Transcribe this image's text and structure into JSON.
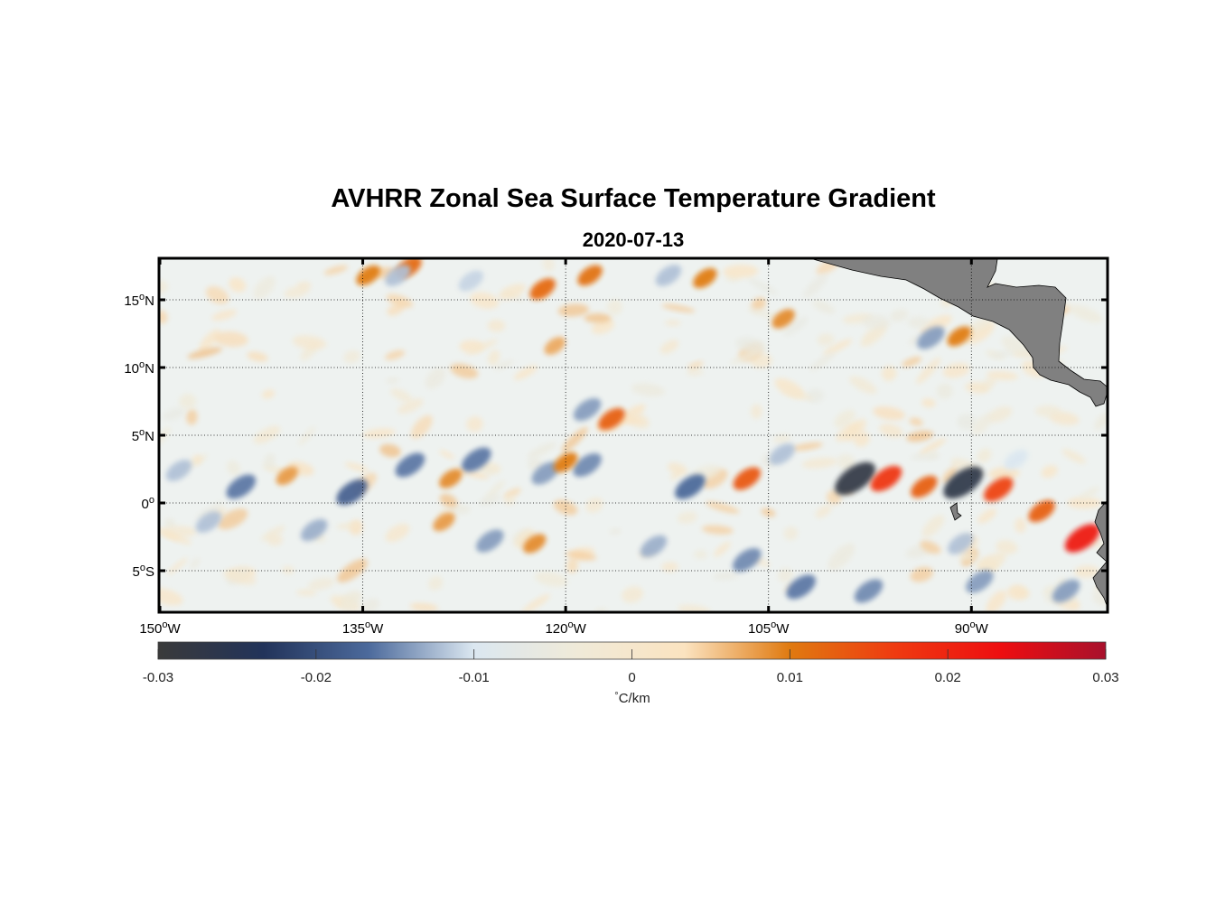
{
  "title": "AVHRR Zonal Sea Surface Temperature Gradient",
  "subtitle": "2020-07-13",
  "map": {
    "lon_range": [
      -150,
      -80
    ],
    "lat_range": [
      -8,
      18
    ],
    "grid": true,
    "lat_ticks": [
      {
        "value": 15,
        "deg": "15",
        "hemi": "N"
      },
      {
        "value": 10,
        "deg": "10",
        "hemi": "N"
      },
      {
        "value": 5,
        "deg": "5",
        "hemi": "N"
      },
      {
        "value": 0,
        "deg": "0",
        "hemi": ""
      },
      {
        "value": -5,
        "deg": "5",
        "hemi": "S"
      }
    ],
    "lon_ticks": [
      {
        "value": -150,
        "deg": "150",
        "hemi": "W"
      },
      {
        "value": -135,
        "deg": "135",
        "hemi": "W"
      },
      {
        "value": -120,
        "deg": "120",
        "hemi": "W"
      },
      {
        "value": -105,
        "deg": "105",
        "hemi": "W"
      },
      {
        "value": -90,
        "deg": "90",
        "hemi": "W"
      }
    ],
    "land_color": "#808080"
  },
  "colorbar": {
    "ticks": [
      "-0.03",
      "-0.02",
      "-0.01",
      "0",
      "0.01",
      "0.02",
      "0.03"
    ],
    "tick_values": [
      -0.03,
      -0.02,
      -0.01,
      0,
      0.01,
      0.02,
      0.03
    ],
    "unit_symbol": "°",
    "unit": "C/km",
    "colors": [
      "#3a3a3a",
      "#22335a",
      "#4c6a9c",
      "#dbe7f0",
      "#f0ead8",
      "#fbe3c0",
      "#e07a10",
      "#ef3a10",
      "#ee0e10",
      "#a8102c"
    ]
  },
  "chart_data": {
    "type": "heatmap",
    "title": "AVHRR Zonal Sea Surface Temperature Gradient",
    "subtitle": "2020-07-13",
    "colorbar_label": "°C/km",
    "colorbar_range": [
      -0.03,
      0.03
    ],
    "x_range": [
      -150,
      -80
    ],
    "y_range": [
      -8,
      18
    ],
    "features": [
      {
        "lon": -98.6,
        "lat": 1.8,
        "value": -0.028
      },
      {
        "lon": -96.3,
        "lat": 1.8,
        "value": 0.018
      },
      {
        "lon": -93.5,
        "lat": 1.2,
        "value": 0.013
      },
      {
        "lon": -90.6,
        "lat": 1.5,
        "value": -0.027
      },
      {
        "lon": -88.0,
        "lat": 1.0,
        "value": 0.016
      },
      {
        "lon": -84.8,
        "lat": -0.6,
        "value": 0.013
      },
      {
        "lon": -81.8,
        "lat": -2.6,
        "value": 0.022
      },
      {
        "lon": -106.6,
        "lat": 1.8,
        "value": 0.014
      },
      {
        "lon": -110.8,
        "lat": 1.2,
        "value": -0.017
      },
      {
        "lon": -116.6,
        "lat": 6.2,
        "value": 0.013
      },
      {
        "lon": -118.4,
        "lat": 6.9,
        "value": -0.014
      },
      {
        "lon": -118.4,
        "lat": 2.8,
        "value": -0.015
      },
      {
        "lon": -126.6,
        "lat": 3.2,
        "value": -0.016
      },
      {
        "lon": -121.5,
        "lat": 2.2,
        "value": -0.014
      },
      {
        "lon": -120.0,
        "lat": 3.0,
        "value": 0.01
      },
      {
        "lon": -131.5,
        "lat": 2.8,
        "value": -0.016
      },
      {
        "lon": -128.5,
        "lat": 1.8,
        "value": 0.009
      },
      {
        "lon": -135.8,
        "lat": 0.8,
        "value": -0.018
      },
      {
        "lon": -144.0,
        "lat": 1.2,
        "value": -0.016
      },
      {
        "lon": -148.6,
        "lat": 2.4,
        "value": -0.012
      },
      {
        "lon": -140.6,
        "lat": 2.0,
        "value": 0.008
      },
      {
        "lon": -102.6,
        "lat": -6.2,
        "value": -0.016
      },
      {
        "lon": -97.6,
        "lat": -6.5,
        "value": -0.015
      },
      {
        "lon": -106.6,
        "lat": -4.2,
        "value": -0.015
      },
      {
        "lon": -90.8,
        "lat": -3.0,
        "value": -0.012
      },
      {
        "lon": -89.4,
        "lat": -5.8,
        "value": -0.014
      },
      {
        "lon": -83.0,
        "lat": -6.5,
        "value": -0.014
      },
      {
        "lon": -125.6,
        "lat": -2.8,
        "value": -0.014
      },
      {
        "lon": -122.3,
        "lat": -3.0,
        "value": 0.009
      },
      {
        "lon": -113.5,
        "lat": -3.2,
        "value": -0.013
      },
      {
        "lon": -129.0,
        "lat": -1.4,
        "value": 0.008
      },
      {
        "lon": -138.6,
        "lat": -2.0,
        "value": -0.013
      },
      {
        "lon": -146.4,
        "lat": -1.4,
        "value": -0.012
      },
      {
        "lon": -121.7,
        "lat": 15.8,
        "value": 0.012
      },
      {
        "lon": -118.2,
        "lat": 16.8,
        "value": 0.011
      },
      {
        "lon": -131.6,
        "lat": 17.4,
        "value": 0.012
      },
      {
        "lon": -134.6,
        "lat": 16.8,
        "value": 0.01
      },
      {
        "lon": -132.4,
        "lat": 16.8,
        "value": -0.012
      },
      {
        "lon": -127.0,
        "lat": 16.4,
        "value": -0.011
      },
      {
        "lon": -120.8,
        "lat": 11.6,
        "value": 0.007
      },
      {
        "lon": -93.0,
        "lat": 12.2,
        "value": -0.014
      },
      {
        "lon": -90.9,
        "lat": 12.3,
        "value": 0.01
      },
      {
        "lon": -103.9,
        "lat": 13.6,
        "value": 0.009
      },
      {
        "lon": -112.4,
        "lat": 16.8,
        "value": -0.012
      },
      {
        "lon": -109.7,
        "lat": 16.6,
        "value": 0.01
      },
      {
        "lon": -86.7,
        "lat": 3.2,
        "value": -0.01
      },
      {
        "lon": -104.0,
        "lat": 3.6,
        "value": -0.012
      }
    ]
  }
}
